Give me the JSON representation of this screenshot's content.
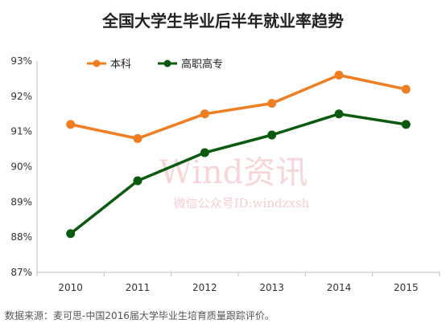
{
  "title": "全国大学生毕业后半年就业率趋势",
  "source": "数据来源：麦可思-中国2016届大学毕业生培育质量跟踪评价。",
  "watermark": {
    "brand": "Wind资讯",
    "handle": "微信公众号ID:windzxsh"
  },
  "colors": {
    "series1": "#ef7d22",
    "series2": "#0c5a0f",
    "axis": "#bfbfbf",
    "watermark": "#f2b3b9"
  },
  "chart_data": {
    "type": "line",
    "title": "全国大学生毕业后半年就业率趋势",
    "x": [
      "2010",
      "2011",
      "2012",
      "2013",
      "2014",
      "2015"
    ],
    "series": [
      {
        "name": "本科",
        "color": "#ef7d22",
        "values": [
          91.2,
          90.8,
          91.5,
          91.8,
          92.6,
          92.2
        ]
      },
      {
        "name": "高职高专",
        "color": "#0c5a0f",
        "values": [
          88.1,
          89.6,
          90.4,
          90.9,
          91.5,
          91.2
        ]
      }
    ],
    "ylim": [
      87,
      93
    ],
    "yticks": [
      "87%",
      "88%",
      "89%",
      "90%",
      "91%",
      "92%",
      "93%"
    ],
    "xlabel": "",
    "ylabel": "",
    "grid": false,
    "legend": "top-left"
  }
}
